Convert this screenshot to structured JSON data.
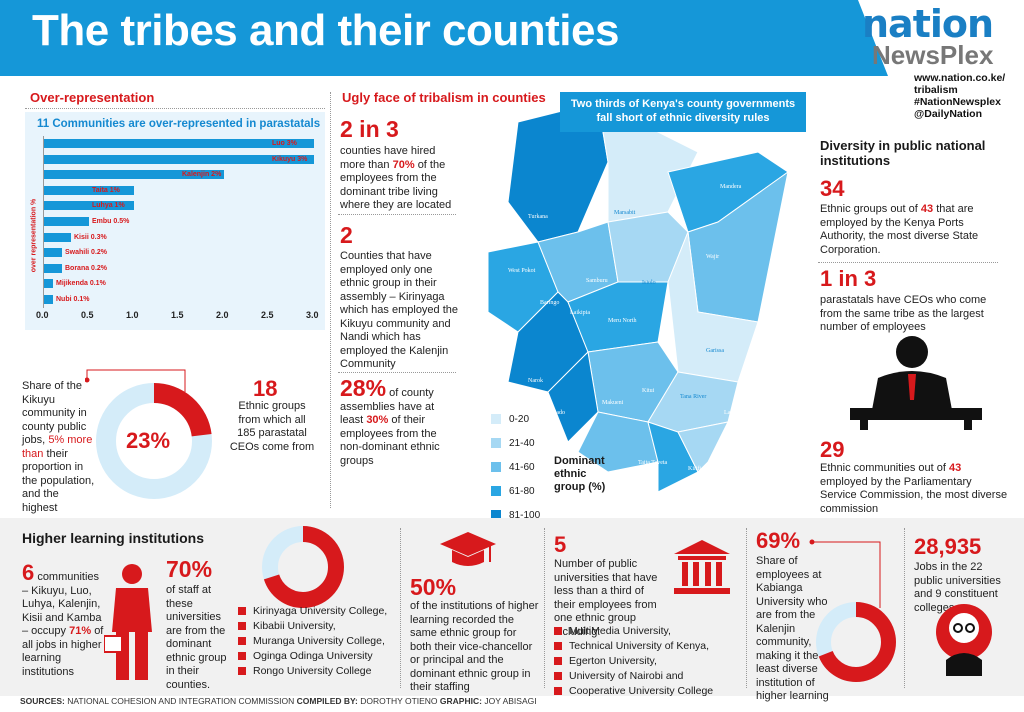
{
  "header": {
    "title": "The tribes and their counties",
    "logo_top": "nation",
    "logo_bottom": "NewsPlex",
    "credits": [
      "www.nation.co.ke/",
      "tribalism",
      "#NationNewsplex",
      "@DailyNation"
    ]
  },
  "over_rep": {
    "heading": "Over-representation",
    "chart_title": "11 Communities are over-represented in parastatals",
    "y_label": "over representation %"
  },
  "chart_data": {
    "type": "bar",
    "orientation": "horizontal",
    "title": "11 Communities are over-represented in parastatals",
    "ylabel": "over representation %",
    "xlim": [
      0,
      3.0
    ],
    "x_ticks": [
      "0.0",
      "0.5",
      "1.0",
      "1.5",
      "2.0",
      "2.5",
      "3.0"
    ],
    "categories": [
      "Luo",
      "Kikuyu",
      "Kalenjin",
      "Taita",
      "Luhya",
      "Embu",
      "Kisii",
      "Swahili",
      "Borana",
      "Mijikenda",
      "Nubi"
    ],
    "values": [
      3,
      3,
      2,
      1,
      1,
      0.5,
      0.3,
      0.2,
      0.2,
      0.1,
      0.1
    ],
    "data_labels": [
      "Luo 3%",
      "Kikuyu 3%",
      "Kalenjin 2%",
      "Taita 1%",
      "Luhya 1%",
      "Embu 0.5%",
      "Kisii 0.3%",
      "Swahili 0.2%",
      "Borana 0.2%",
      "Mijikenda 0.1%",
      "Nubi 0.1%"
    ]
  },
  "kikuyu_share": {
    "pre": "Share of the Kikuyu community in county public jobs,",
    "highlight": "5% more than",
    "post": "their proportion in the population, and the highest",
    "value": "23%",
    "fraction": 0.23
  },
  "ethnic_ceos": {
    "number": "18",
    "text": "Ethnic groups from which all 185 parastatal CEOs come from"
  },
  "ugly": {
    "heading": "Ugly face of tribalism in counties",
    "stat1_num": "2 in 3",
    "stat1_pre": "counties have hired more than",
    "stat1_hl": "70%",
    "stat1_post": "of the employees from the dominant tribe living where they are located",
    "stat2_num": "2",
    "stat2_text": "Counties that have employed only one ethnic group in their assembly – Kirinyaga which has employed the Kikuyu community and Nandi which has employed the Kalenjin Community",
    "stat3_num": "28%",
    "stat3_pre": "of county assemblies have at least",
    "stat3_hl": "30%",
    "stat3_post": "of their employees from the non-dominant ethnic groups"
  },
  "map": {
    "banner": "Two thirds of Kenya's county governments fall short of ethnic diversity rules",
    "legend_title": "Dominant ethnic group (%)",
    "legend": [
      {
        "label": "0-20",
        "color": "#d4ecf9"
      },
      {
        "label": "21-40",
        "color": "#a6d8f3"
      },
      {
        "label": "41-60",
        "color": "#6cc0ec"
      },
      {
        "label": "61-80",
        "color": "#2aa6e3"
      },
      {
        "label": "81-100",
        "color": "#0b86cf"
      }
    ],
    "places": [
      "Mandera",
      "Turkana",
      "Marsabit",
      "Wajir",
      "West Pokot",
      "Samburu",
      "Isiolo",
      "Baringo",
      "Laikipia",
      "Meru North",
      "Garissa",
      "Narok",
      "Kitui",
      "Makueni",
      "Tana River",
      "Kajiado",
      "Lamu",
      "Taita Taveta",
      "Kilifi",
      "Kwale"
    ]
  },
  "diversity": {
    "heading": "Diversity in public national institutions",
    "s1_num": "34",
    "s1_pre": "Ethnic groups out of",
    "s1_hl": "43",
    "s1_post": "that are employed by the Kenya Ports Authority, the most diverse State Corporation.",
    "s2_num": "1 in 3",
    "s2_text": "parastatals have CEOs who come from the same tribe as the largest number of employees",
    "s3_num": "29",
    "s3_pre": "Ethnic communities out of",
    "s3_hl": "43",
    "s3_post": "employed by the Parliamentary Service Commission, the most diverse commission"
  },
  "higher": {
    "heading": "Higher learning institutions",
    "c1_num": "6",
    "c1_pre": "communities – Kikuyu, Luo, Luhya, Kalenjin, Kisii and Kamba – occupy",
    "c1_hl": "71%",
    "c1_post": "of all jobs in higher learning institutions",
    "c2_num": "70%",
    "c2_text": "of staff at these universities are from the dominant ethnic group in their counties.",
    "c2_fraction": 0.7,
    "c2_list": [
      "Kirinyaga University College,",
      "Kibabii University,",
      "Muranga University College,",
      "Oginga Odinga University",
      "Rongo University College"
    ],
    "c3_num": "50%",
    "c3_text": "of the institutions of higher learning recorded the same ethnic group for both their vice-chancellor or principal and the dominant ethnic group in their staffing",
    "c4_num": "5",
    "c4_text": "Number of public universities that have less than a third of their employees from one ethnic group including:",
    "c4_list": [
      "MultiMedia University,",
      "Technical University of Kenya,",
      "Egerton University,",
      "University of Nairobi and",
      "Cooperative University College"
    ],
    "c5_num": "69%",
    "c5_text": "Share of employees at Kabianga University who are from the Kalenjin community, making it the least diverse institution of higher learning",
    "c5_fraction": 0.69,
    "c6_num": "28,935",
    "c6_text": "Jobs in the 22 public universities and 9 constituent colleges."
  },
  "footer": {
    "sources_label": "SOURCES:",
    "sources": "NATIONAL COHESION AND INTEGRATION COMMISSION",
    "compiled_label": "COMPILED BY:",
    "compiled": "DOROTHY OTIENO",
    "graphic_label": "GRAPHIC:",
    "graphic": "JOY ABISAGI"
  },
  "colors": {
    "blue": "#1597d8",
    "red": "#d7191c",
    "light_blue": "#d4ecf9"
  }
}
